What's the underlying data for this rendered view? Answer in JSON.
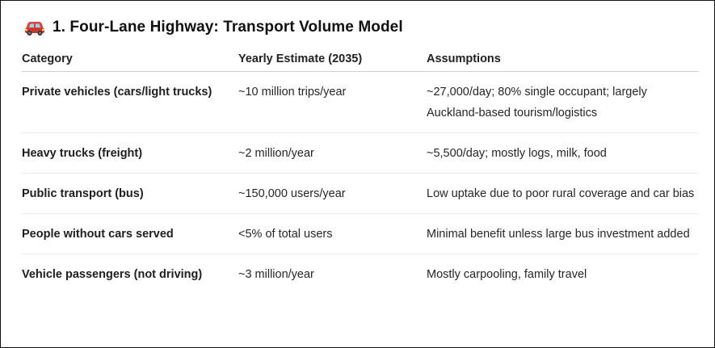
{
  "section": {
    "icon": "car-icon",
    "title": "1. Four-Lane Highway: Transport Volume Model"
  },
  "table": {
    "headers": [
      "Category",
      "Yearly Estimate (2035)",
      "Assumptions"
    ],
    "rows": [
      {
        "category": "Private vehicles (cars/light trucks)",
        "estimate": "~10 million trips/year",
        "assumptions": "~27,000/day; 80% single occupant; largely Auckland-based tourism/logistics"
      },
      {
        "category": "Heavy trucks (freight)",
        "estimate": "~2 million/year",
        "assumptions": "~5,500/day; mostly logs, milk, food"
      },
      {
        "category": "Public transport (bus)",
        "estimate": "~150,000 users/year",
        "assumptions": "Low uptake due to poor rural coverage and car bias"
      },
      {
        "category": "People without cars served",
        "estimate": "<5% of total users",
        "assumptions": "Minimal benefit unless large bus investment added"
      },
      {
        "category": "Vehicle passengers (not driving)",
        "estimate": "~3 million/year",
        "assumptions": "Mostly carpooling, family travel"
      }
    ]
  }
}
